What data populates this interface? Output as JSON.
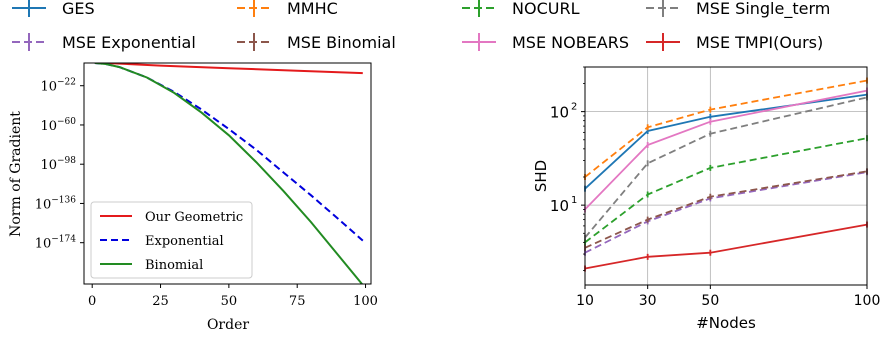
{
  "legend_top": {
    "entries": [
      {
        "label": "GES",
        "color": "#1f77b4",
        "dashed": false
      },
      {
        "label": "MMHC",
        "color": "#ff7f0e",
        "dashed": true
      },
      {
        "label": "NOCURL",
        "color": "#2ca02c",
        "dashed": true
      },
      {
        "label": "MSE Single_term",
        "color": "#7f7f7f",
        "dashed": true
      },
      {
        "label": "MSE Exponential",
        "color": "#9467bd",
        "dashed": true
      },
      {
        "label": "MSE Binomial",
        "color": "#8c564b",
        "dashed": true
      },
      {
        "label": "MSE NOBEARS",
        "color": "#e377c2",
        "dashed": false
      },
      {
        "label": "MSE TMPI(Ours)",
        "color": "#d62728",
        "dashed": false
      }
    ]
  },
  "chart_data": [
    {
      "type": "line",
      "xlabel": "Order",
      "ylabel": "Norm of Gradient",
      "xlim": [
        -3,
        102
      ],
      "ylim_log10": [
        0,
        -214
      ],
      "x_ticks": [
        0,
        25,
        50,
        75,
        100
      ],
      "y_ticks": [
        {
          "label": "10",
          "exp": "−22",
          "log10": -22
        },
        {
          "label": "10",
          "exp": "−60",
          "log10": -60
        },
        {
          "label": "10",
          "exp": "−98",
          "log10": -98
        },
        {
          "label": "10",
          "exp": "−136",
          "log10": -136
        },
        {
          "label": "10",
          "exp": "−174",
          "log10": -174
        }
      ],
      "grid": false,
      "legend_position": "lower-left",
      "series": [
        {
          "name": "Our Geometric",
          "color": "#e41a1c",
          "dashed": false,
          "x": [
            1,
            5,
            25,
            50,
            75,
            99
          ],
          "log10_y": [
            0,
            0,
            -2.5,
            -5,
            -7.5,
            -9.8
          ]
        },
        {
          "name": "Exponential",
          "color": "#0000dd",
          "dashed": true,
          "x": [
            1,
            5,
            10,
            20,
            30,
            40,
            50,
            60,
            70,
            80,
            90,
            99
          ],
          "log10_y": [
            0,
            -1,
            -4,
            -14,
            -28,
            -45,
            -64,
            -84,
            -106,
            -128,
            -151,
            -172
          ]
        },
        {
          "name": "Binomial",
          "color": "#228b22",
          "dashed": false,
          "x": [
            1,
            5,
            10,
            20,
            30,
            40,
            50,
            60,
            70,
            80,
            90,
            99
          ],
          "log10_y": [
            0,
            -1,
            -4,
            -14,
            -29,
            -48,
            -70,
            -96,
            -124,
            -154,
            -186,
            -215
          ]
        }
      ]
    },
    {
      "type": "line",
      "xlabel": "#Nodes",
      "ylabel": "SHD",
      "x_scale": "linear",
      "y_scale": "log",
      "xlim": [
        10,
        100
      ],
      "ylim": [
        1.4,
        300
      ],
      "x_ticks": [
        10,
        30,
        50,
        100
      ],
      "y_ticks": [
        {
          "label": "10",
          "exp": "1",
          "value": 10
        },
        {
          "label": "10",
          "exp": "2",
          "value": 100
        }
      ],
      "grid": true,
      "series": [
        {
          "name": "GES",
          "color": "#1f77b4",
          "dashed": false,
          "x": [
            10,
            30,
            50,
            100
          ],
          "y": [
            15,
            62,
            88,
            152
          ]
        },
        {
          "name": "MMHC",
          "color": "#ff7f0e",
          "dashed": true,
          "x": [
            10,
            30,
            50,
            100
          ],
          "y": [
            20,
            68,
            105,
            215
          ]
        },
        {
          "name": "NOCURL",
          "color": "#2ca02c",
          "dashed": true,
          "x": [
            10,
            30,
            50,
            100
          ],
          "y": [
            4.0,
            13,
            25,
            52
          ]
        },
        {
          "name": "MSE Single_term",
          "color": "#7f7f7f",
          "dashed": true,
          "x": [
            10,
            30,
            50,
            100
          ],
          "y": [
            4.5,
            28,
            58,
            142
          ]
        },
        {
          "name": "MSE Exponential",
          "color": "#9467bd",
          "dashed": true,
          "x": [
            10,
            30,
            50,
            100
          ],
          "y": [
            3.1,
            6.7,
            11.8,
            22.5
          ]
        },
        {
          "name": "MSE Binomial",
          "color": "#8c564b",
          "dashed": true,
          "x": [
            10,
            30,
            50,
            100
          ],
          "y": [
            3.5,
            7.0,
            12.3,
            23
          ]
        },
        {
          "name": "MSE NOBEARS",
          "color": "#e377c2",
          "dashed": false,
          "x": [
            10,
            30,
            50,
            100
          ],
          "y": [
            9,
            44,
            78,
            168
          ]
        },
        {
          "name": "MSE TMPI(Ours)",
          "color": "#d62728",
          "dashed": false,
          "x": [
            10,
            30,
            50,
            100
          ],
          "y": [
            2.1,
            2.8,
            3.1,
            6.2
          ]
        }
      ]
    }
  ]
}
